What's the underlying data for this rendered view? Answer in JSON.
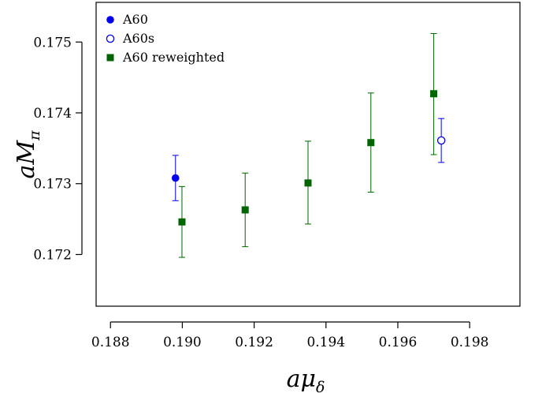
{
  "chart_data": {
    "type": "scatter",
    "xlabel": {
      "main": "aμ",
      "sub": "δ"
    },
    "ylabel": {
      "main": "aM",
      "sub": "π"
    },
    "xlim": [
      0.1876,
      0.1994
    ],
    "ylim": [
      0.17127,
      0.17556
    ],
    "x_ticks": [
      {
        "value": 0.188,
        "label": "0.188"
      },
      {
        "value": 0.19,
        "label": "0.190"
      },
      {
        "value": 0.192,
        "label": "0.192"
      },
      {
        "value": 0.194,
        "label": "0.194"
      },
      {
        "value": 0.196,
        "label": "0.196"
      },
      {
        "value": 0.198,
        "label": "0.198"
      }
    ],
    "y_ticks": [
      {
        "value": 0.172,
        "label": "0.172"
      },
      {
        "value": 0.173,
        "label": "0.173"
      },
      {
        "value": 0.174,
        "label": "0.174"
      },
      {
        "value": 0.175,
        "label": "0.175"
      }
    ],
    "grid": false,
    "legend_position": "top-left",
    "series": [
      {
        "name": "A60",
        "color": "#0000ee",
        "marker": "filled-circle",
        "points": [
          {
            "x": 0.18981,
            "y": 0.17308,
            "ylo": 0.17276,
            "yhi": 0.1734
          }
        ]
      },
      {
        "name": "A60s",
        "color": "#0000ee",
        "marker": "open-circle",
        "points": [
          {
            "x": 0.19721,
            "y": 0.17361,
            "ylo": 0.1733,
            "yhi": 0.17392
          }
        ]
      },
      {
        "name": "A60 reweighted",
        "color": "#006400",
        "marker": "filled-square",
        "points": [
          {
            "x": 0.18999,
            "y": 0.17246,
            "ylo": 0.17196,
            "yhi": 0.17296
          },
          {
            "x": 0.19175,
            "y": 0.17263,
            "ylo": 0.17211,
            "yhi": 0.17315
          },
          {
            "x": 0.1935,
            "y": 0.17301,
            "ylo": 0.17243,
            "yhi": 0.1736
          },
          {
            "x": 0.19525,
            "y": 0.17358,
            "ylo": 0.17288,
            "yhi": 0.17428
          },
          {
            "x": 0.197,
            "y": 0.17427,
            "ylo": 0.17341,
            "yhi": 0.17512
          }
        ]
      }
    ]
  }
}
